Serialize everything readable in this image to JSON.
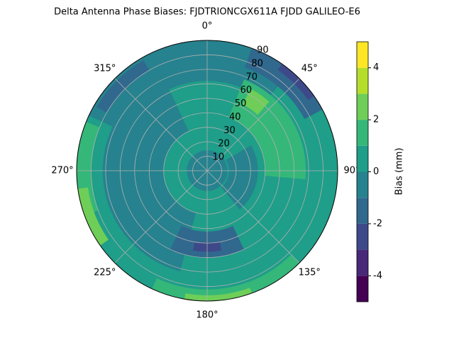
{
  "chart_data": {
    "type": "polar_contour",
    "title": "Delta Antenna Phase Biases: FJDTRIONCGX611A FJDD GALILEO-E6",
    "colorbar_label": "Bias (mm)",
    "levels": [
      -5,
      -4,
      -3,
      -2,
      -1,
      0,
      1,
      2,
      3,
      4,
      5
    ],
    "colors": [
      "#440154",
      "#482878",
      "#3e4989",
      "#31688e",
      "#26828e",
      "#1f9e89",
      "#35b779",
      "#6ece58",
      "#b5de2b",
      "#fde725"
    ],
    "colorbar_ticks": [
      -4,
      -2,
      0,
      2,
      4
    ],
    "rlim": [
      0,
      90
    ],
    "rticks": [
      10,
      20,
      30,
      40,
      50,
      60,
      70,
      80,
      90
    ],
    "thetaticks": [
      {
        "value": 0,
        "label": "0°"
      },
      {
        "value": 45,
        "label": "45°"
      },
      {
        "value": 90,
        "label": "90°"
      },
      {
        "value": 135,
        "label": "135°"
      },
      {
        "value": 180,
        "label": "180°"
      },
      {
        "value": 225,
        "label": "225°"
      },
      {
        "value": 270,
        "label": "270°"
      },
      {
        "value": 315,
        "label": "315°"
      }
    ],
    "grid": true,
    "regions": [
      {
        "value": 0,
        "theta": [
          0,
          360
        ],
        "r": [
          0,
          90
        ]
      },
      {
        "value": -1,
        "theta": [
          195,
          335
        ],
        "r": [
          30,
          72
        ]
      },
      {
        "value": -1,
        "theta": [
          0,
          360
        ],
        "r": [
          0,
          14
        ]
      },
      {
        "value": -1,
        "theta": [
          295,
          400
        ],
        "r": [
          62,
          90
        ]
      },
      {
        "value": -1,
        "theta": [
          60,
          140
        ],
        "r": [
          15,
          35
        ]
      },
      {
        "value": -2,
        "theta": [
          20,
          62
        ],
        "r": [
          76,
          90
        ]
      },
      {
        "value": -2,
        "theta": [
          155,
          205
        ],
        "r": [
          42,
          60
        ]
      },
      {
        "value": -2,
        "theta": [
          300,
          330
        ],
        "r": [
          80,
          88
        ]
      },
      {
        "value": -3,
        "theta": [
          35,
          55
        ],
        "r": [
          85,
          90
        ]
      },
      {
        "value": -3,
        "theta": [
          170,
          190
        ],
        "r": [
          50,
          56
        ]
      },
      {
        "value": 1,
        "theta": [
          22,
          95
        ],
        "r": [
          40,
          68
        ]
      },
      {
        "value": 1,
        "theta": [
          250,
          292
        ],
        "r": [
          80,
          90
        ]
      },
      {
        "value": 1,
        "theta": [
          135,
          205
        ],
        "r": [
          82,
          90
        ]
      },
      {
        "value": 2,
        "theta": [
          235,
          262
        ],
        "r": [
          83,
          90
        ]
      },
      {
        "value": 2,
        "theta": [
          28,
          42
        ],
        "r": [
          52,
          64
        ]
      },
      {
        "value": 2,
        "theta": [
          160,
          190
        ],
        "r": [
          86,
          90
        ]
      }
    ]
  }
}
